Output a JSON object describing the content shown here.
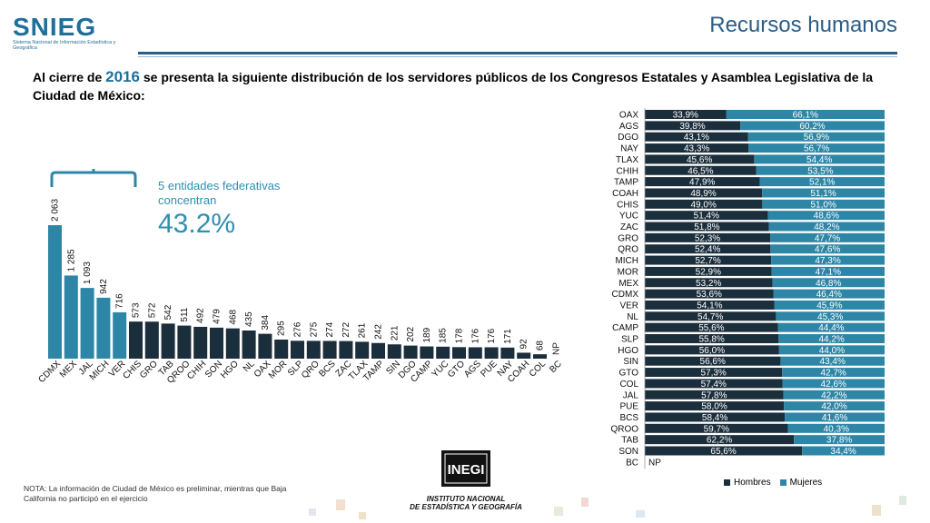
{
  "header": {
    "logo_text": "SNIEG",
    "logo_sub": "Sistema Nacional de Información Estadística y Geográfica",
    "title": "Recursos humanos"
  },
  "intro": {
    "before": "Al cierre de ",
    "year": "2016",
    "after": " se presenta la siguiente distribución de los servidores públicos de los Congresos Estatales y Asamblea Legislativa de la Ciudad de México:"
  },
  "concentration": {
    "label_line1": "5 entidades federativas",
    "label_line2": "concentran",
    "value": "43.2%"
  },
  "note": "NOTA: La información de Ciudad de México es preliminar, mientras que Baja California no participó en el ejercicio",
  "inegi": {
    "logo_text": "INEGI",
    "name_line1": "INSTITUTO NACIONAL",
    "name_line2": "DE ESTADÍSTICA Y GEOGRAFÍA"
  },
  "colors": {
    "dark": "#1b2e3c",
    "teal": "#2e86a6",
    "title": "#2a5d86"
  },
  "chart_data": [
    {
      "type": "bar",
      "categories": [
        "CDMX",
        "MEX",
        "JAL",
        "MICH",
        "VER",
        "CHIS",
        "GRO",
        "TAB",
        "QROO",
        "CHIH",
        "SON",
        "HGO",
        "NL",
        "OAX",
        "MOR",
        "SLP",
        "QRO",
        "BCS",
        "ZAC",
        "TLAX",
        "TAMP",
        "SIN",
        "DGO",
        "CAMP",
        "YUC",
        "GTO",
        "AGS",
        "PUE",
        "NAY",
        "COAH",
        "COL",
        "BC"
      ],
      "values": [
        2063,
        1285,
        1093,
        942,
        716,
        573,
        572,
        542,
        511,
        492,
        479,
        468,
        435,
        384,
        295,
        276,
        275,
        274,
        272,
        261,
        242,
        221,
        202,
        189,
        185,
        178,
        176,
        176,
        171,
        92,
        68,
        null
      ],
      "labels": [
        "2 063",
        "1 285",
        "1 093",
        "942",
        "716",
        "573",
        "572",
        "542",
        "511",
        "492",
        "479",
        "468",
        "435",
        "384",
        "295",
        "276",
        "275",
        "274",
        "272",
        "261",
        "242",
        "221",
        "202",
        "189",
        "185",
        "178",
        "176",
        "176",
        "171",
        "92",
        "68",
        "NP"
      ],
      "highlighted_count": 5,
      "ylim": [
        0,
        2100
      ]
    },
    {
      "type": "bar",
      "orientation": "horizontal",
      "stacked": true,
      "categories": [
        "OAX",
        "AGS",
        "DGO",
        "NAY",
        "TLAX",
        "CHIH",
        "TAMP",
        "COAH",
        "CHIS",
        "YUC",
        "ZAC",
        "GRO",
        "QRO",
        "MICH",
        "MOR",
        "MEX",
        "CDMX",
        "VER",
        "NL",
        "CAMP",
        "SLP",
        "HGO",
        "SIN",
        "GTO",
        "COL",
        "JAL",
        "PUE",
        "BCS",
        "QROO",
        "TAB",
        "SON",
        "BC"
      ],
      "series": [
        {
          "name": "Hombres",
          "values": [
            33.9,
            39.8,
            43.1,
            43.3,
            45.6,
            46.5,
            47.9,
            48.9,
            49.0,
            51.4,
            51.8,
            52.3,
            52.4,
            52.7,
            52.9,
            53.2,
            53.6,
            54.1,
            54.7,
            55.6,
            55.8,
            56.0,
            56.6,
            57.3,
            57.4,
            57.8,
            58.0,
            58.4,
            59.7,
            62.2,
            65.6,
            null
          ],
          "labels": [
            "33,9%",
            "39,8%",
            "43,1%",
            "43,3%",
            "45,6%",
            "46,5%",
            "47,9%",
            "48,9%",
            "49,0%",
            "51,4%",
            "51,8%",
            "52,3%",
            "52,4%",
            "52,7%",
            "52,9%",
            "53,2%",
            "53,6%",
            "54,1%",
            "54,7%",
            "55,6%",
            "55,8%",
            "56,0%",
            "56,6%",
            "57,3%",
            "57,4%",
            "57,8%",
            "58,0%",
            "58,4%",
            "59,7%",
            "62,2%",
            "65,6%",
            "NP"
          ]
        },
        {
          "name": "Mujeres",
          "values": [
            66.1,
            60.2,
            56.9,
            56.7,
            54.4,
            53.5,
            52.1,
            51.1,
            51.0,
            48.6,
            48.2,
            47.7,
            47.6,
            47.3,
            47.1,
            46.8,
            46.4,
            45.9,
            45.3,
            44.4,
            44.2,
            44.0,
            43.4,
            42.7,
            42.6,
            42.2,
            42.0,
            41.6,
            40.3,
            37.8,
            34.4,
            null
          ],
          "labels": [
            "66,1%",
            "60,2%",
            "56,9%",
            "56,7%",
            "54,4%",
            "53,5%",
            "52,1%",
            "51,1%",
            "51,0%",
            "48,6%",
            "48,2%",
            "47,7%",
            "47,6%",
            "47,3%",
            "47,1%",
            "46,8%",
            "46,4%",
            "45,9%",
            "45,3%",
            "44,4%",
            "44,2%",
            "44,0%",
            "43,4%",
            "42,7%",
            "42,6%",
            "42,2%",
            "42,0%",
            "41,6%",
            "40,3%",
            "37,8%",
            "34,4%",
            ""
          ]
        }
      ],
      "legend": "bottom"
    }
  ]
}
